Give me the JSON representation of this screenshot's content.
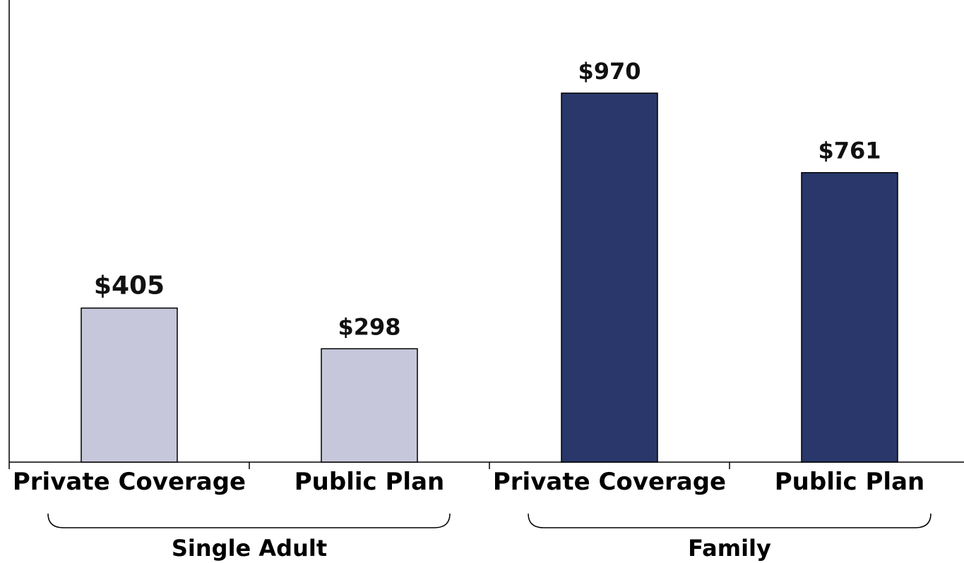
{
  "chart_data": {
    "type": "bar",
    "categories": [
      "Private Coverage",
      "Public Plan",
      "Private Coverage",
      "Public Plan"
    ],
    "groups": [
      {
        "label": "Single Adult",
        "category_indices": [
          0,
          1
        ]
      },
      {
        "label": "Family",
        "category_indices": [
          2,
          3
        ]
      }
    ],
    "values": [
      405,
      298,
      970,
      761
    ],
    "value_labels": [
      "$405",
      "$298",
      "$970",
      "$761"
    ],
    "bar_colors": [
      "#C6C7DB",
      "#C6C7DB",
      "#29376A",
      "#29376A"
    ],
    "title": "",
    "xlabel": "",
    "ylabel": "",
    "ylim": [
      0,
      1200
    ],
    "grid": false
  }
}
